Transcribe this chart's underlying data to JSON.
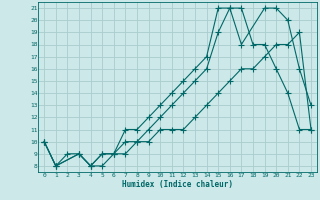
{
  "xlabel": "Humidex (Indice chaleur)",
  "background_color": "#cce8e8",
  "grid_color": "#aacccc",
  "line_color": "#006868",
  "xlim": [
    -0.5,
    23.5
  ],
  "ylim": [
    7.5,
    21.5
  ],
  "xticks": [
    0,
    1,
    2,
    3,
    4,
    5,
    6,
    7,
    8,
    9,
    10,
    11,
    12,
    13,
    14,
    15,
    16,
    17,
    18,
    19,
    20,
    21,
    22,
    23
  ],
  "yticks": [
    8,
    9,
    10,
    11,
    12,
    13,
    14,
    15,
    16,
    17,
    18,
    19,
    20,
    21
  ],
  "lines": [
    {
      "x": [
        0,
        1,
        2,
        3,
        4,
        5,
        6,
        7,
        8,
        9,
        10,
        11,
        12,
        13,
        14,
        15,
        16,
        17,
        18,
        19,
        20,
        21,
        22,
        23
      ],
      "y": [
        10,
        8,
        9,
        9,
        8,
        9,
        9,
        9,
        10,
        10,
        11,
        11,
        11,
        12,
        13,
        14,
        15,
        16,
        16,
        17,
        18,
        18,
        19,
        11
      ]
    },
    {
      "x": [
        0,
        1,
        3,
        4,
        5,
        6,
        7,
        8,
        9,
        10,
        11,
        12,
        13,
        14,
        15,
        16,
        17,
        18,
        19,
        20,
        21,
        22,
        23
      ],
      "y": [
        10,
        8,
        9,
        8,
        8,
        9,
        10,
        10,
        11,
        12,
        13,
        14,
        15,
        16,
        19,
        21,
        21,
        18,
        18,
        16,
        14,
        11,
        11
      ]
    },
    {
      "x": [
        0,
        1,
        3,
        4,
        5,
        6,
        7,
        8,
        9,
        10,
        11,
        12,
        13,
        14,
        15,
        16,
        17,
        19,
        20,
        21,
        22,
        23
      ],
      "y": [
        10,
        8,
        9,
        8,
        9,
        9,
        11,
        11,
        12,
        13,
        14,
        15,
        16,
        17,
        21,
        21,
        18,
        21,
        21,
        20,
        16,
        13
      ]
    }
  ]
}
